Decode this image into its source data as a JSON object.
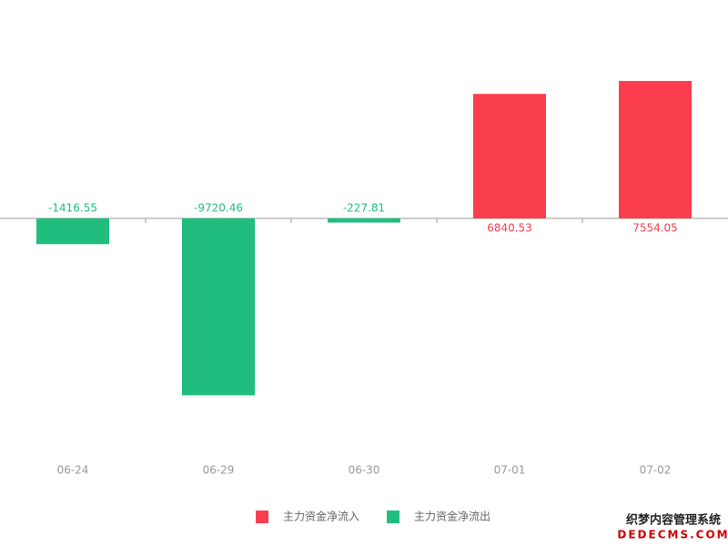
{
  "chart_data": {
    "type": "bar",
    "categories": [
      "06-24",
      "06-29",
      "06-30",
      "07-01",
      "07-02"
    ],
    "series": [
      {
        "name": "主力资金净流入",
        "color": "#fa3e4e",
        "values": [
          null,
          null,
          null,
          6840.53,
          7554.05
        ]
      },
      {
        "name": "主力资金净流出",
        "color": "#21bd7f",
        "values": [
          -1416.55,
          -9720.46,
          -227.81,
          null,
          null
        ]
      }
    ],
    "ylim": [
      -10000,
      10000
    ],
    "watermark": [
      "织梦内容管理系统",
      "DEDECMS.COM"
    ]
  }
}
